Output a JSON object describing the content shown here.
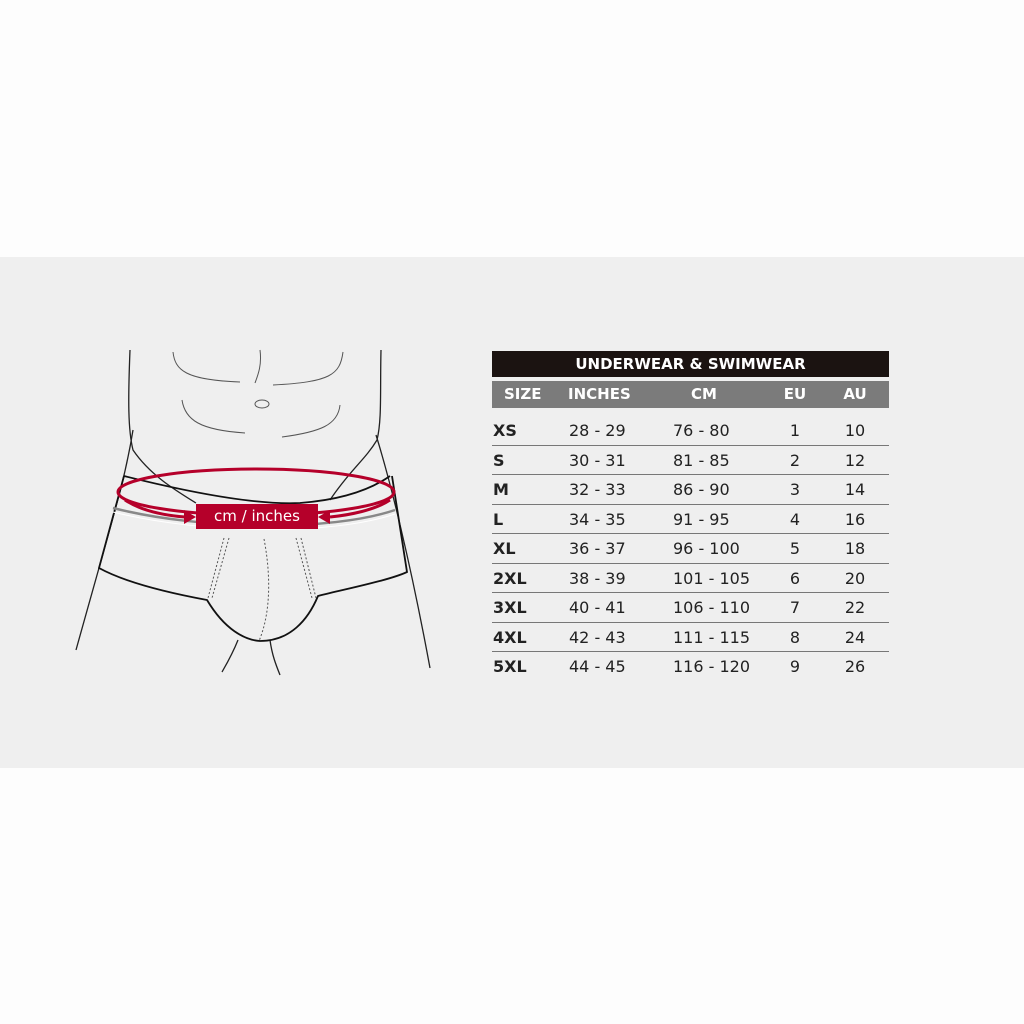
{
  "illustration": {
    "measure_label": "cm / inches",
    "accent_color": "#b5002a"
  },
  "table": {
    "title": "UNDERWEAR & SWIMWEAR",
    "headers": [
      "SIZE",
      "INCHES",
      "CM",
      "EU",
      "AU"
    ],
    "rows": [
      [
        "XS",
        "28 - 29",
        "76 - 80",
        "1",
        "10"
      ],
      [
        "S",
        "30 - 31",
        "81 - 85",
        "2",
        "12"
      ],
      [
        "M",
        "32 - 33",
        "86 - 90",
        "3",
        "14"
      ],
      [
        "L",
        "34 - 35",
        "91 - 95",
        "4",
        "16"
      ],
      [
        "XL",
        "36 - 37",
        "96 - 100",
        "5",
        "18"
      ],
      [
        "2XL",
        "38 - 39",
        "101 - 105",
        "6",
        "20"
      ],
      [
        "3XL",
        "40 - 41",
        "106 - 110",
        "7",
        "22"
      ],
      [
        "4XL",
        "42 - 43",
        "111 - 115",
        "8",
        "24"
      ],
      [
        "5XL",
        "44 - 45",
        "116 - 120",
        "9",
        "26"
      ]
    ]
  }
}
